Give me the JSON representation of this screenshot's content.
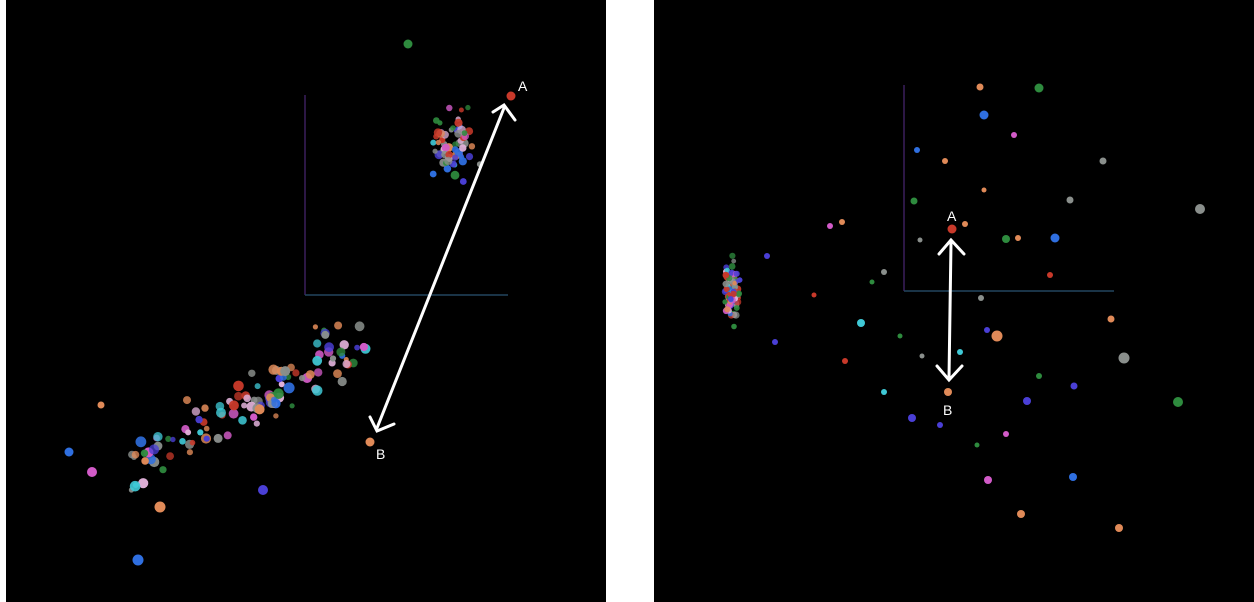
{
  "colors": {
    "background": "#000000",
    "arrow": "#ffffff",
    "axis_vertical": "#3a1f5c",
    "axis_horizontal": "#23455f",
    "palette": [
      "#2e8b3e",
      "#e08a58",
      "#3fc9d6",
      "#d25bc8",
      "#4a3fd6",
      "#c8392a",
      "#8a8f8c",
      "#2f6fe0",
      "#e0b0d8"
    ]
  },
  "panels": [
    {
      "id": "left",
      "label_a": "A",
      "label_b": "B"
    },
    {
      "id": "right",
      "label_a": "A",
      "label_b": "B"
    }
  ]
}
